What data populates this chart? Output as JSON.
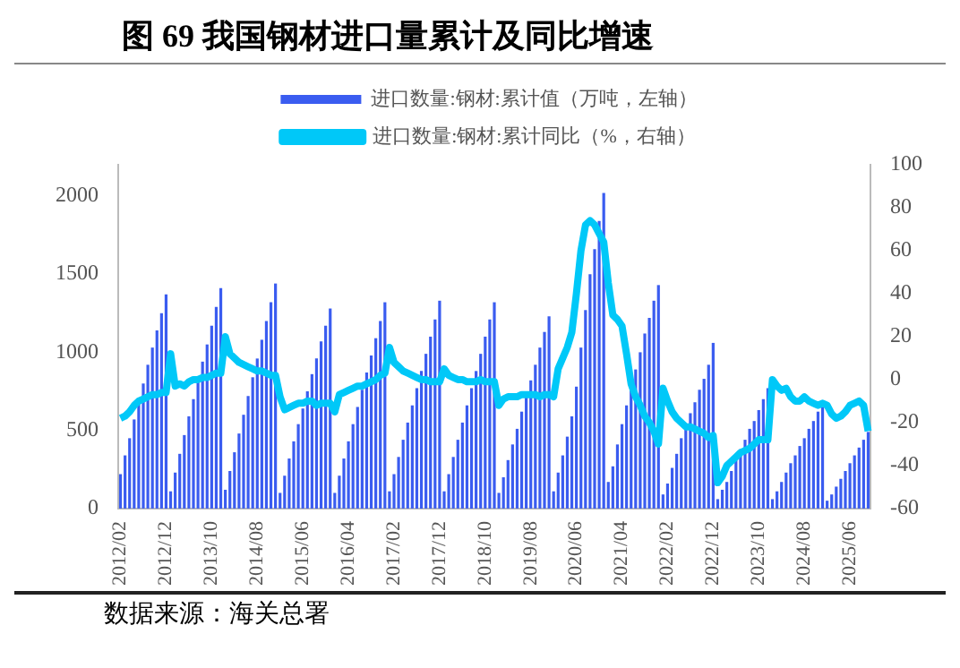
{
  "chart_data": {
    "type": "bar",
    "title": "图 69 我国钢材进口量累计及同比增速",
    "categories": [
      "2012/02",
      null,
      null,
      null,
      null,
      null,
      null,
      null,
      null,
      null,
      "2012/12",
      null,
      null,
      null,
      null,
      null,
      null,
      null,
      null,
      null,
      "2013/10",
      null,
      null,
      null,
      null,
      null,
      null,
      null,
      null,
      null,
      "2014/08",
      null,
      null,
      null,
      null,
      null,
      null,
      null,
      null,
      null,
      "2015/06",
      null,
      null,
      null,
      null,
      null,
      null,
      null,
      null,
      null,
      "2016/04",
      null,
      null,
      null,
      null,
      null,
      null,
      null,
      null,
      null,
      "2017/02",
      null,
      null,
      null,
      null,
      null,
      null,
      null,
      null,
      null,
      "2017/12",
      null,
      null,
      null,
      null,
      null,
      null,
      null,
      null,
      null,
      "2018/10",
      null,
      null,
      null,
      null,
      null,
      null,
      null,
      null,
      null,
      "2019/08",
      null,
      null,
      null,
      null,
      null,
      null,
      null,
      null,
      null,
      "2020/06",
      null,
      null,
      null,
      null,
      null,
      null,
      null,
      null,
      null,
      "2021/04",
      null,
      null,
      null,
      null,
      null,
      null,
      null,
      null,
      null,
      "2022/02",
      null,
      null,
      null,
      null,
      null,
      null,
      null,
      null,
      null,
      "2022/12",
      null,
      null,
      null,
      null,
      null,
      null,
      null,
      null,
      null,
      "2023/10",
      null,
      null,
      null,
      null,
      null,
      null,
      null,
      null,
      null,
      "2024/08",
      null,
      null,
      null,
      null,
      null,
      null,
      null,
      null,
      null,
      "2025/06",
      null,
      null,
      null,
      null
    ],
    "series": [
      {
        "name": "进口数量:钢材:累计值（万吨，左轴）",
        "axis": "y",
        "color": "#3a5cf0",
        "values": [
          220,
          340,
          450,
          570,
          680,
          800,
          920,
          1030,
          1140,
          1250,
          1370,
          110,
          230,
          350,
          470,
          590,
          700,
          820,
          940,
          1050,
          1170,
          1290,
          1410,
          120,
          240,
          360,
          480,
          600,
          720,
          840,
          960,
          1080,
          1200,
          1320,
          1440,
          100,
          210,
          320,
          430,
          540,
          640,
          750,
          860,
          960,
          1070,
          1170,
          1280,
          100,
          210,
          320,
          430,
          540,
          650,
          760,
          870,
          980,
          1090,
          1200,
          1320,
          110,
          220,
          330,
          440,
          550,
          660,
          770,
          880,
          990,
          1100,
          1210,
          1330,
          110,
          220,
          330,
          440,
          550,
          660,
          770,
          880,
          990,
          1100,
          1210,
          1320,
          100,
          200,
          310,
          410,
          510,
          620,
          720,
          820,
          920,
          1030,
          1130,
          1230,
          110,
          230,
          340,
          460,
          590,
          780,
          1030,
          1270,
          1500,
          1660,
          1840,
          2020,
          170,
          270,
          410,
          540,
          660,
          780,
          890,
          1000,
          1120,
          1220,
          1330,
          1430,
          90,
          160,
          260,
          350,
          450,
          530,
          610,
          680,
          760,
          830,
          920,
          1060,
          60,
          120,
          170,
          240,
          310,
          380,
          440,
          510,
          560,
          630,
          700,
          770,
          60,
          110,
          170,
          230,
          290,
          340,
          400,
          450,
          510,
          560,
          620,
          680,
          50,
          90,
          140,
          190,
          240,
          290,
          340,
          390,
          440,
          490
        ]
      },
      {
        "name": "进口数量:钢材:累计同比（%，右轴）",
        "type": "line",
        "axis": "y2",
        "color": "#00c8f8",
        "values": [
          -18,
          -17,
          -15,
          -12,
          -10,
          -9,
          -8,
          -7,
          -7,
          -6,
          -6,
          12,
          -3,
          -2,
          -3,
          -1,
          0,
          0,
          1,
          1,
          2,
          3,
          3,
          20,
          12,
          10,
          8,
          7,
          6,
          5,
          4,
          4,
          3,
          2,
          2,
          -8,
          -14,
          -13,
          -12,
          -11,
          -11,
          -10,
          -10,
          -12,
          -11,
          -11,
          -11,
          -15,
          -7,
          -6,
          -5,
          -4,
          -3,
          -3,
          -2,
          -1,
          0,
          2,
          3,
          15,
          8,
          6,
          4,
          3,
          2,
          1,
          0,
          0,
          -1,
          -1,
          -1,
          5,
          2,
          1,
          0,
          0,
          -1,
          -1,
          -1,
          0,
          -1,
          -1,
          -1,
          -12,
          -9,
          -8,
          -8,
          -8,
          -7,
          -7,
          -7,
          -7,
          -8,
          -7,
          -7,
          -8,
          5,
          10,
          15,
          22,
          40,
          60,
          72,
          74,
          72,
          68,
          64,
          45,
          30,
          28,
          25,
          12,
          -2,
          -8,
          -12,
          -17,
          -20,
          -24,
          -30,
          -4,
          -10,
          -15,
          -18,
          -20,
          -22,
          -22,
          -23,
          -24,
          -25,
          -27,
          -26,
          -48,
          -45,
          -40,
          -38,
          -36,
          -34,
          -33,
          -32,
          -30,
          -28,
          -28,
          -28,
          0,
          -3,
          -5,
          -4,
          -8,
          -10,
          -10,
          -8,
          -10,
          -11,
          -12,
          -11,
          -12,
          -16,
          -18,
          -17,
          -15,
          -12,
          -11,
          -10,
          -12,
          -24
        ]
      }
    ],
    "ylim": [
      0,
      2200
    ],
    "yticks": [
      0,
      500,
      1000,
      1500,
      2000
    ],
    "y2lim": [
      -60,
      100
    ],
    "y2ticks": [
      -60,
      -40,
      -20,
      0,
      20,
      40,
      60,
      80,
      100
    ],
    "legend": "top",
    "grid": false,
    "marker": "none",
    "annotations": [
      "数据来源：海关总署"
    ]
  }
}
